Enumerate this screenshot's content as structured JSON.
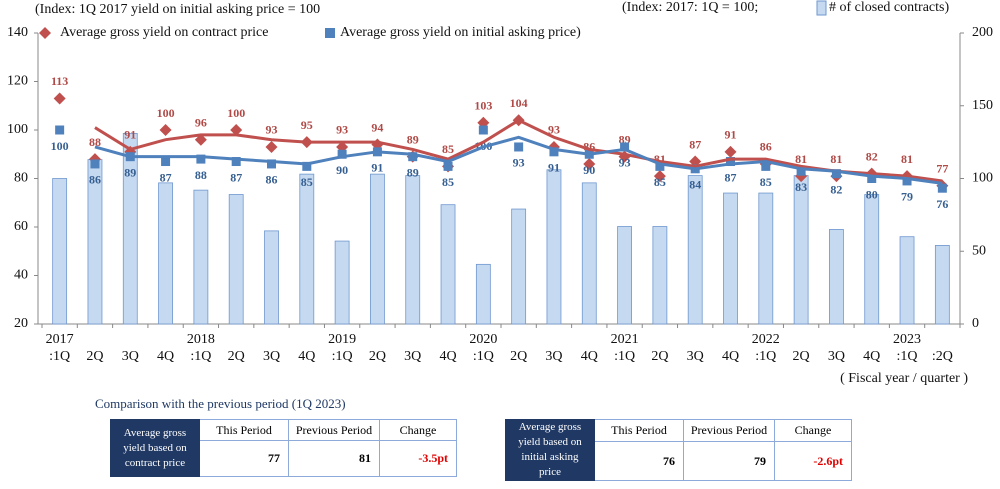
{
  "chart_data": {
    "type": "combo",
    "note_left": "(Index: 1Q 2017 yield on initial asking price = 100",
    "note_right": "(Index: 2017: 1Q = 100;",
    "x_label": "( Fiscal year / quarter )",
    "categories": [
      ":1Q",
      "2Q",
      "3Q",
      "4Q",
      ":1Q",
      "2Q",
      "3Q",
      "4Q",
      ":1Q",
      "2Q",
      "3Q",
      "4Q",
      ":1Q",
      "2Q",
      "3Q",
      "4Q",
      ":1Q",
      "2Q",
      "3Q",
      "4Q",
      ":1Q",
      "2Q",
      "3Q",
      "4Q",
      ":1Q",
      ":2Q"
    ],
    "years": [
      "2017",
      null,
      null,
      null,
      "2018",
      null,
      null,
      null,
      "2019",
      null,
      null,
      null,
      "2020",
      null,
      null,
      null,
      "2021",
      null,
      null,
      null,
      "2022",
      null,
      null,
      null,
      "2023",
      null
    ],
    "ylim": [
      20,
      140
    ],
    "yticks": [
      20,
      40,
      60,
      80,
      100,
      120,
      140
    ],
    "y2lim": [
      0,
      200
    ],
    "y2ticks": [
      0,
      50,
      100,
      150,
      200
    ],
    "series": [
      {
        "name": "# of closed contracts)",
        "type": "bar",
        "axis": "y2",
        "color": "#c5d9f1",
        "values": [
          100,
          113,
          131,
          97,
          92,
          89,
          64,
          103,
          57,
          103,
          102,
          82,
          41,
          79,
          106,
          97,
          67,
          67,
          102,
          90,
          90,
          102,
          65,
          89,
          60,
          54
        ]
      },
      {
        "name": "Average gross yield on contract price",
        "type": "scatter",
        "marker": "diamond",
        "color": "#c0504d",
        "values": [
          113,
          88,
          91,
          100,
          96,
          100,
          93,
          95,
          93,
          94,
          89,
          85,
          103,
          104,
          93,
          86,
          89,
          81,
          87,
          91,
          86,
          81,
          81,
          82,
          81,
          77
        ]
      },
      {
        "name": "Average gross yield on initial asking price)",
        "type": "scatter",
        "marker": "square",
        "color": "#4f81bd",
        "values": [
          100,
          86,
          89,
          87,
          88,
          87,
          86,
          85,
          90,
          91,
          89,
          85,
          100,
          93,
          91,
          90,
          93,
          85,
          84,
          87,
          85,
          83,
          82,
          80,
          79,
          76
        ]
      },
      {
        "type": "line",
        "color": "#c0504d",
        "values": [
          null,
          101,
          92,
          96,
          98,
          98,
          96,
          95,
          95,
          95,
          92,
          88,
          95,
          104,
          97,
          92,
          90,
          87,
          85,
          88,
          88,
          85,
          83,
          82,
          81,
          79
        ]
      },
      {
        "type": "line",
        "color": "#4f81bd",
        "values": [
          null,
          93,
          89,
          89,
          89,
          88,
          87,
          86,
          89,
          91,
          90,
          87,
          93,
          97,
          92,
          90,
          92,
          86,
          84,
          86,
          87,
          84,
          83,
          81,
          80,
          78
        ]
      }
    ]
  },
  "comparison": {
    "title": "Comparison with the previous period (1Q 2023)",
    "tables": [
      {
        "label": "Average gross yield based on contract price",
        "headers": [
          "This Period",
          "Previous Period",
          "Change"
        ],
        "values": [
          77,
          81,
          "-3.5pt"
        ]
      },
      {
        "label": "Average gross yield based on initial asking price",
        "headers": [
          "This Period",
          "Previous Period",
          "Change"
        ],
        "values": [
          76,
          79,
          "-2.6pt"
        ]
      }
    ]
  }
}
